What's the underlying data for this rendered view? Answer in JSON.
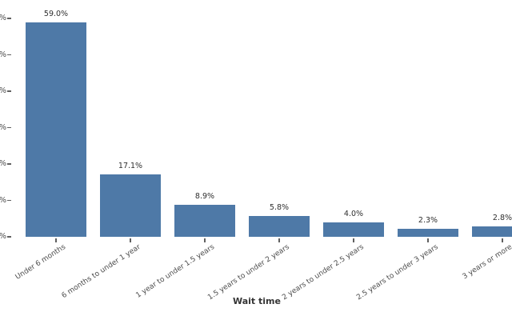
{
  "chart_data": {
    "type": "bar",
    "title": "",
    "xlabel": "Wait time",
    "ylabel": "",
    "categories": [
      "Under 6 months",
      "6 months to under 1 year",
      "1 year to under 1.5 years",
      "1.5 years to under 2 years",
      "2 years to under 2.5 years",
      "2.5 years to under 3 years",
      "3 years or more"
    ],
    "values": [
      59.0,
      17.1,
      8.9,
      5.8,
      4.0,
      2.3,
      2.8
    ],
    "value_labels": [
      "59.0%",
      "17.1%",
      "8.9%",
      "5.8%",
      "4.0%",
      "2.3%",
      "2.8%"
    ],
    "ylim": [
      0,
      60
    ],
    "y_tick_interval": 10,
    "y_tick_visible_text": "%",
    "grid": false,
    "legend": false,
    "notes_clipping": "y-axis numeric tick labels clipped at left image edge; last bar clipped at right image edge"
  },
  "colors": {
    "bar": "#4e79a7",
    "value_label": "#2e2e2e",
    "axis_text": "#4a4a4a",
    "axis_title": "#353535",
    "tick_mark": "#606060",
    "background": "#ffffff"
  }
}
